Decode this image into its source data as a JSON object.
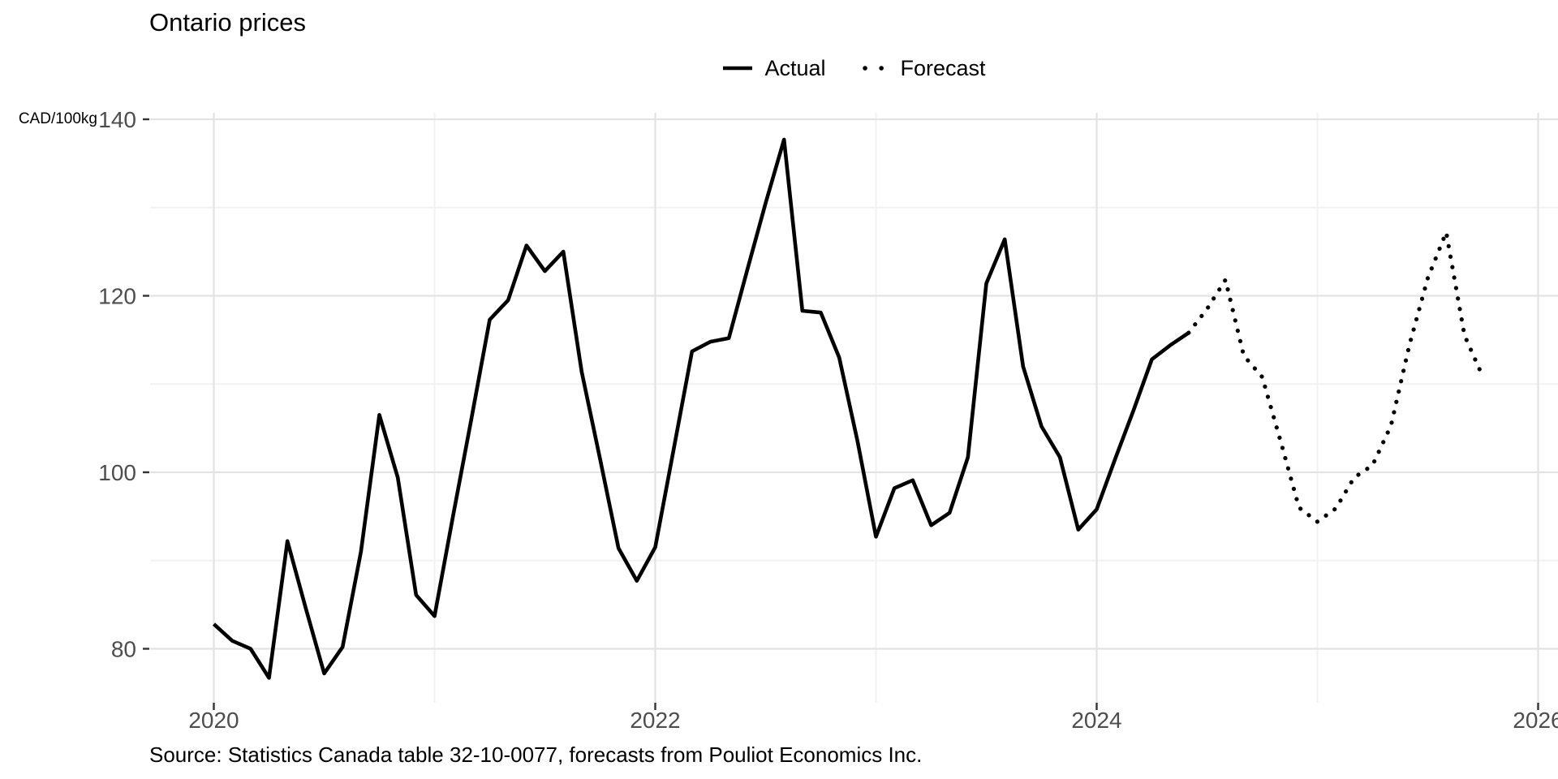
{
  "title": "Ontario prices",
  "y_axis_unit": "CAD/100kg",
  "legend": {
    "actual_label": "Actual",
    "forecast_label": "Forecast"
  },
  "source_note": "Source: Statistics Canada table 32-10-0077, forecasts from Pouliot Economics Inc.",
  "chart_data": {
    "type": "line",
    "title": "Ontario prices",
    "xlabel": "",
    "ylabel": "CAD/100kg",
    "frequency": "monthly",
    "x_tick_labels": [
      "2020",
      "2022",
      "2024",
      "2026"
    ],
    "x_major_years": [
      2020,
      2022,
      2024,
      2026
    ],
    "x_minor_years": [
      2021,
      2023,
      2025
    ],
    "y_major_ticks": [
      80,
      100,
      120,
      140
    ],
    "y_minor_ticks": [
      90,
      110,
      130
    ],
    "ylim": [
      74,
      143.5
    ],
    "xlim_years": [
      2019.71,
      2026.09
    ],
    "grid": true,
    "legend_position": "top-center",
    "series": [
      {
        "name": "Actual",
        "style": "solid",
        "start_month": "2020-01",
        "values": [
          82.8,
          80.9,
          80.0,
          76.7,
          92.2,
          84.6,
          77.2,
          80.2,
          91.0,
          106.5,
          99.4,
          86.1,
          83.7,
          95.0,
          106.0,
          117.3,
          119.5,
          125.7,
          122.8,
          125.0,
          111.4,
          101.5,
          91.4,
          87.7,
          91.5,
          102.6,
          113.7,
          114.8,
          115.2,
          122.9,
          130.5,
          137.7,
          118.3,
          118.1,
          113.0,
          103.5,
          92.7,
          98.2,
          99.1,
          94.0,
          95.4,
          101.7,
          121.4,
          126.4,
          112.0,
          105.2,
          101.7,
          93.5,
          95.8,
          101.5,
          107.0,
          112.8,
          114.4,
          115.8
        ]
      },
      {
        "name": "Forecast",
        "style": "dotted",
        "start_month": "2024-06",
        "values": [
          115.8,
          118.5,
          121.8,
          113.2,
          110.8,
          103.5,
          96.0,
          94.4,
          95.9,
          99.4,
          100.8,
          105.3,
          114.4,
          122.0,
          127.2,
          115.5,
          110.8
        ]
      }
    ],
    "colors": {
      "line": "#000000",
      "grid_major": "#e3e3e3",
      "grid_minor": "#f2f2f2",
      "tick_label": "#4d4d4d",
      "tick_mark": "#333333",
      "background": "#ffffff"
    }
  }
}
